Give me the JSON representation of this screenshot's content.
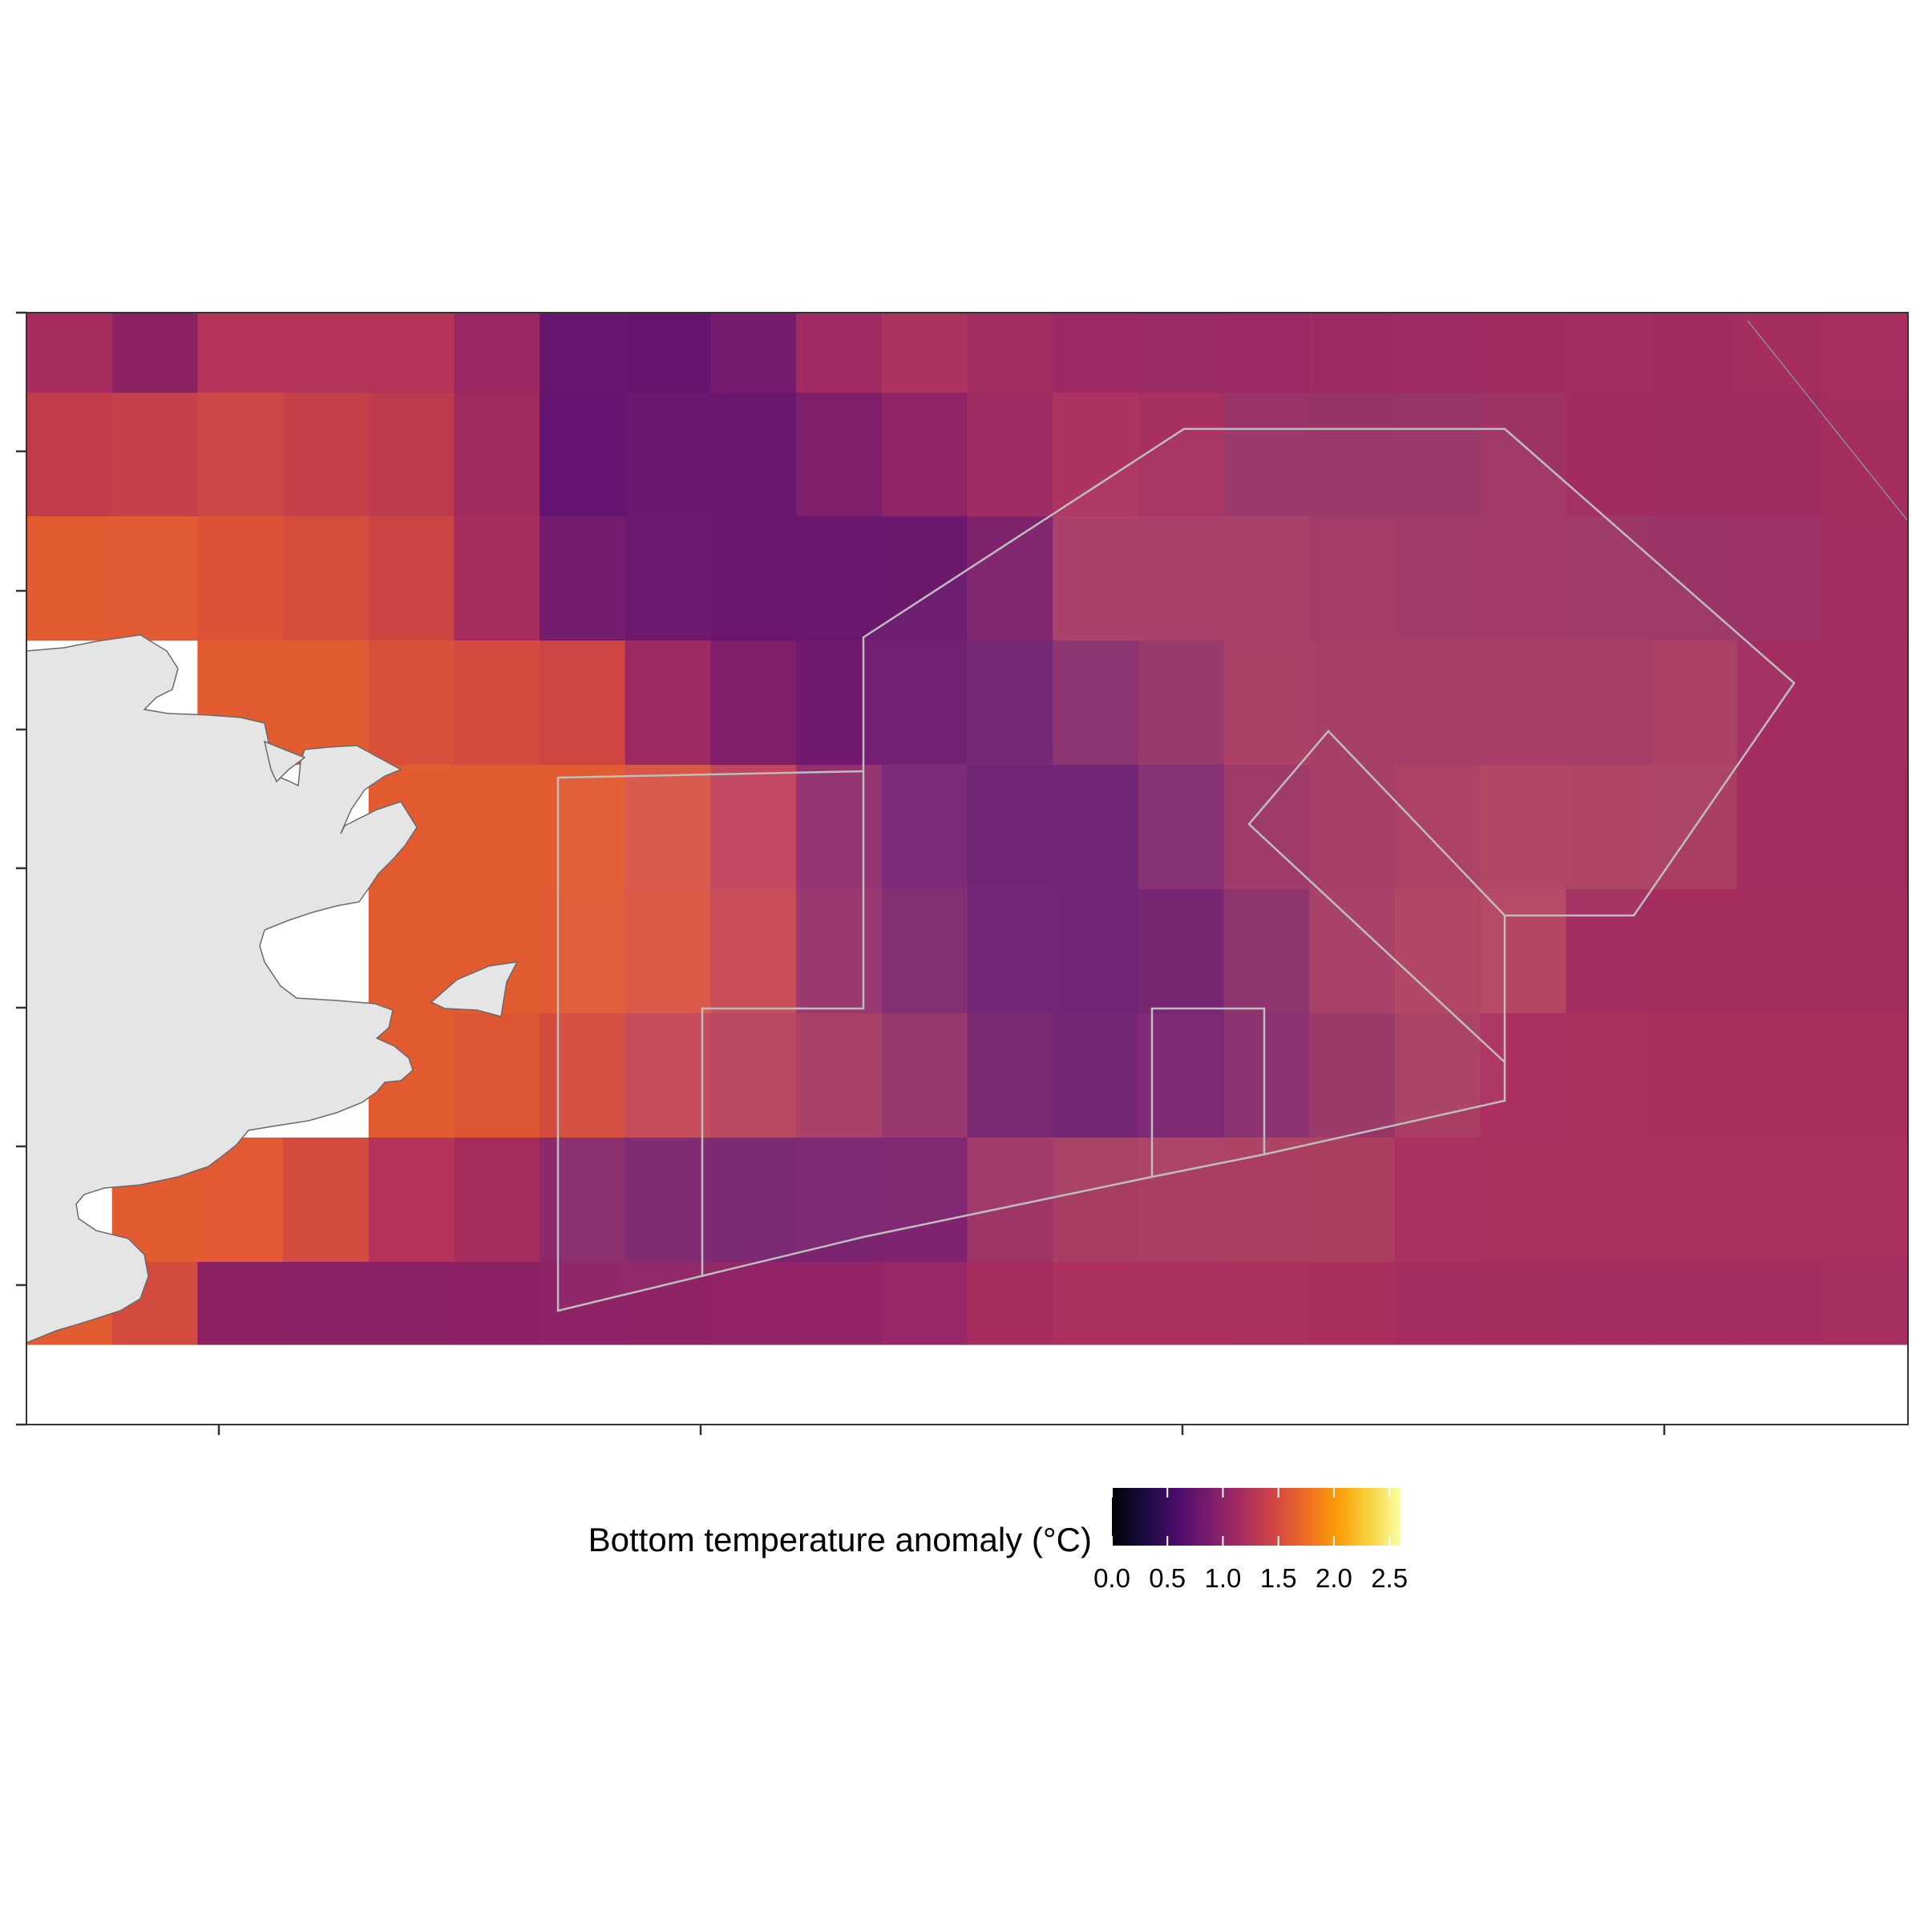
{
  "map": {
    "grid": {
      "columns": 22,
      "rows": 9,
      "colors": [
        [
          "#a82c5e",
          "#8c2164",
          "#b5355a",
          "#b4345a",
          "#b4345a",
          "#9b2863",
          "#671670",
          "#65156e",
          "#761b6e",
          "#a12b62",
          "#ad3360",
          "#a42e62",
          "#9c2965",
          "#9b2964",
          "#9c2965",
          "#9e2a64",
          "#a02b63",
          "#a22c62",
          "#a42d61",
          "#a22c62",
          "#a52d60",
          "#a82e5f"
        ],
        [
          "#c23d4c",
          "#c4414b",
          "#cb4844",
          "#c4414a",
          "#bd3b4f",
          "#a12b5e",
          "#641470",
          "#6b1870",
          "#6a176e",
          "#7f1f6c",
          "#912467",
          "#a12b63",
          "#ad3360",
          "#a73061",
          "#983468",
          "#973466",
          "#983567",
          "#9e3465",
          "#a22c62",
          "#a12c62",
          "#a12c62",
          "#a52d60"
        ],
        [
          "#e35b31",
          "#e25b32",
          "#dd5237",
          "#d74d3d",
          "#cd4543",
          "#a62c5e",
          "#751c6e",
          "#6e1970",
          "#6b176e",
          "#6a176e",
          "#6b186d",
          "#7f226c",
          "#a83b66",
          "#a73a66",
          "#a83b66",
          "#a13665",
          "#9e3567",
          "#9f3567",
          "#9c3667",
          "#9c3567",
          "#9d3267",
          "#a32c61"
        ],
        [
          "#ffffff",
          "#ffffff",
          "#e35b31",
          "#e35b31",
          "#d94f3a",
          "#d54b3f",
          "#ce4542",
          "#9e2962",
          "#811e6b",
          "#71196e",
          "#6e1b6e",
          "#712372",
          "#8a2e6e",
          "#953468",
          "#a83c64",
          "#a43a65",
          "#a33963",
          "#a53964",
          "#a43963",
          "#a93c62",
          "#a42d61",
          "#a42d61"
        ],
        [
          "#ffffff",
          "#ffffff",
          "#ffffff",
          "#ffffff",
          "#e35b31",
          "#e35b31",
          "#e35b31",
          "#d6564a",
          "#c2445d",
          "#92306f",
          "#772573",
          "#6c1f71",
          "#6c1f71",
          "#832a71",
          "#9c3567",
          "#a43963",
          "#aa3d63",
          "#b04262",
          "#ad4062",
          "#ab3f62",
          "#a32c61",
          "#a42c61"
        ],
        [
          "#ffffff",
          "#ffffff",
          "#ffffff",
          "#ffffff",
          "#e35b31",
          "#e35b31",
          "#e15a32",
          "#da5543",
          "#c94855",
          "#96336c",
          "#81296f",
          "#6f2172",
          "#6c1f71",
          "#731f6e",
          "#8d2e6a",
          "#a63c64",
          "#b04262",
          "#b54562",
          "#a42e61",
          "#a52e5f",
          "#a52d60",
          "#a52d60"
        ],
        [
          "#ffffff",
          "#ffffff",
          "#ffffff",
          "#ffffff",
          "#e35b31",
          "#de5534",
          "#d34b3d",
          "#c34758",
          "#b9425c",
          "#a83b64",
          "#94336a",
          "#75246f",
          "#6f2171",
          "#7a2470",
          "#8b2d6e",
          "#993566",
          "#a83f63",
          "#ac3162",
          "#ab2f5f",
          "#ab2f5e",
          "#aa2f5e",
          "#a92f5e"
        ],
        [
          "#ffffff",
          "#e35b31",
          "#e25932",
          "#d44c3d",
          "#b5345a",
          "#a62c5e",
          "#8a2a6b",
          "#7c2570",
          "#792470",
          "#7a2470",
          "#7f2370",
          "#9e3567",
          "#a83d64",
          "#ab3f63",
          "#ab3e60",
          "#aa3f60",
          "#ac3162",
          "#ab3060",
          "#ab305f",
          "#ab305f",
          "#ab305f",
          "#ab305f"
        ],
        [
          "#e35b31",
          "#d34b3d",
          "#8c2164",
          "#8a2165",
          "#8a2165",
          "#8c2165",
          "#8e2266",
          "#8f2366",
          "#912366",
          "#932467",
          "#972766",
          "#a72d61",
          "#ac3160",
          "#ac3160",
          "#ab3160",
          "#aa2f5f",
          "#a52d61",
          "#a52d60",
          "#a42c61",
          "#a42c61",
          "#a52d61",
          "#a62e60"
        ]
      ]
    },
    "land_color": "#e5e5e5",
    "boundary_color": "#bdbdbd",
    "frame_color": "#333333"
  },
  "legend": {
    "title": "Bottom temperature anomaly (°C)",
    "min": 0.0,
    "max": 2.6,
    "ticks": [
      {
        "value": 0.0,
        "label": "0.0"
      },
      {
        "value": 0.5,
        "label": "0.5"
      },
      {
        "value": 1.0,
        "label": "1.0"
      },
      {
        "value": 1.5,
        "label": "1.5"
      },
      {
        "value": 2.0,
        "label": "2.0"
      },
      {
        "value": 2.5,
        "label": "2.5"
      }
    ],
    "colors": [
      "#000004",
      "#1b0c41",
      "#4a0c6b",
      "#781c6d",
      "#a52c60",
      "#cf4446",
      "#ed6925",
      "#fb9b06",
      "#f7d13d",
      "#fcffa4"
    ]
  }
}
